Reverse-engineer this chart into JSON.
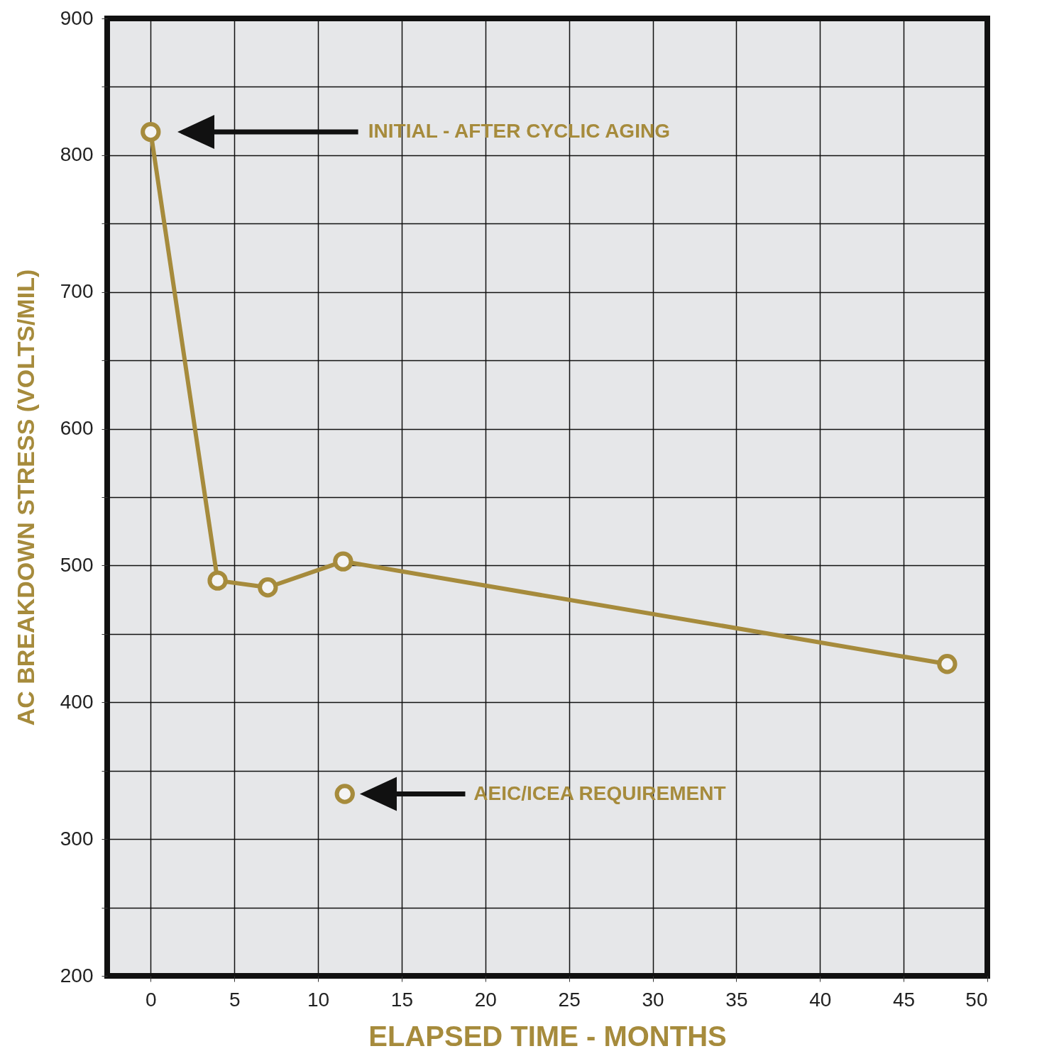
{
  "chart_data": {
    "type": "line",
    "xlabel": "ELAPSED TIME - MONTHS",
    "ylabel": "AC BREAKDOWN STRESS (VOLTS/MIL)",
    "xlim": [
      -2.6,
      50
    ],
    "ylim": [
      200,
      900
    ],
    "xticks": [
      0,
      5,
      10,
      15,
      20,
      25,
      30,
      35,
      40,
      45,
      50
    ],
    "yticks": [
      200,
      {
        "value": 250,
        "label": null
      },
      300,
      {
        "value": 350,
        "label": null
      },
      400,
      {
        "value": 450,
        "label": null
      },
      500,
      {
        "value": 550,
        "label": null
      },
      600,
      {
        "value": 650,
        "label": null
      },
      700,
      {
        "value": 750,
        "label": null
      },
      800,
      {
        "value": 850,
        "label": null
      },
      900
    ],
    "grid": true,
    "marker": "circle",
    "line_style": "solid",
    "series": [
      {
        "color": "#a68b3c",
        "x": [
          0,
          4,
          7,
          11.5,
          47.6
        ],
        "values": [
          817,
          489,
          484,
          503,
          428
        ]
      },
      {
        "type": "scatter",
        "color": "#a68b3c",
        "x": [
          11.6
        ],
        "values": [
          333
        ]
      }
    ],
    "annotations": [
      "INITIAL - AFTER CYCLIC AGING",
      "AEIC/ICEA REQUIREMENT"
    ]
  }
}
